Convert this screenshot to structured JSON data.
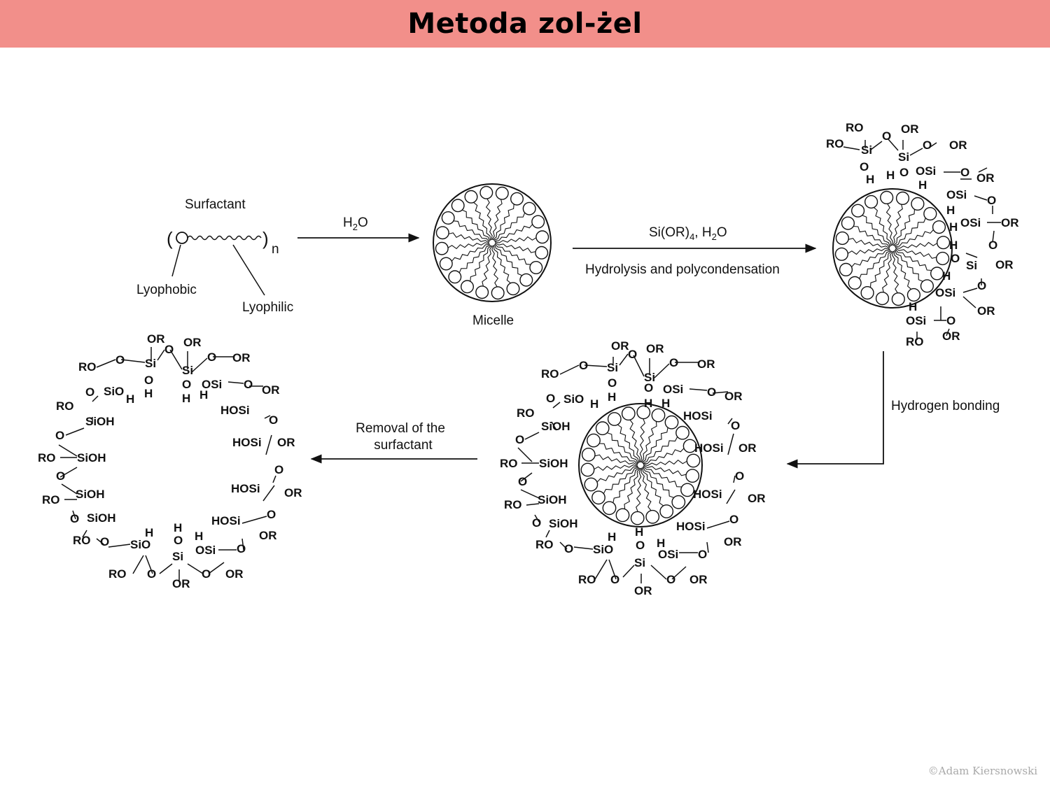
{
  "title": "Metoda zol-żel",
  "copyright": "©Adam Kiersnowski",
  "labels": {
    "surfactant": "Surfactant",
    "subscript_n": "n",
    "lyophobic": "Lyophobic",
    "lyophilic": "Lyophilic",
    "water": "H",
    "water_sub": "2",
    "water_o": "O",
    "micelle": "Micelle",
    "reagent_a": "Si(OR)",
    "reagent_sub4": "4",
    "reagent_b": ", H",
    "reagent_sub2": "2",
    "reagent_c": "O",
    "hydrolysis": "Hydrolysis and polycondensation",
    "hydrogen_bonding": "Hydrogen bonding",
    "removal_line1": "Removal of the",
    "removal_line2": "surfactant"
  },
  "colors": {
    "title_bar": "#f28f8a",
    "ink": "#111111"
  }
}
